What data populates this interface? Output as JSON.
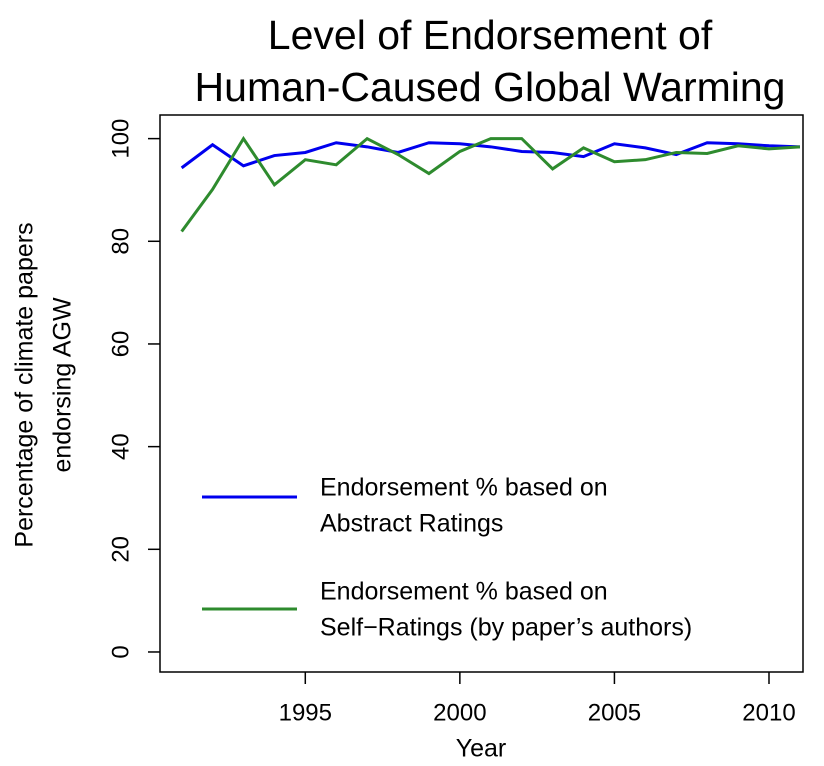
{
  "chart_data": {
    "type": "line",
    "title": [
      "Level of Endorsement of",
      "Human-Caused Global Warming"
    ],
    "xlabel": "Year",
    "ylabel": [
      "Percentage of climate papers",
      "endorsing AGW"
    ],
    "x": [
      1991,
      1992,
      1993,
      1994,
      1995,
      1996,
      1997,
      1998,
      1999,
      2000,
      2001,
      2002,
      2003,
      2004,
      2005,
      2006,
      2007,
      2008,
      2009,
      2010,
      2011
    ],
    "series": [
      {
        "name": [
          "Endorsement % based on",
          "Abstract Ratings"
        ],
        "color": "#0000ee",
        "values": [
          94.3,
          98.8,
          94.7,
          96.7,
          97.3,
          99.2,
          98.4,
          97.3,
          99.2,
          99.0,
          98.4,
          97.5,
          97.3,
          96.5,
          99.0,
          98.2,
          96.9,
          99.2,
          99.0,
          98.6,
          98.4
        ]
      },
      {
        "name": [
          "Endorsement % based on",
          "Self−Ratings (by paper’s authors)"
        ],
        "color": "#2e8b2e",
        "values": [
          81.9,
          90.1,
          100,
          91.0,
          95.9,
          94.9,
          100,
          96.9,
          93.2,
          97.5,
          100,
          100,
          94.1,
          98.2,
          95.5,
          95.9,
          97.3,
          97.1,
          98.6,
          98.0,
          98.4
        ]
      }
    ],
    "xlim": [
      1990.3,
      2011.1
    ],
    "ylim": [
      -3.9,
      104.6
    ],
    "xticks": [
      1995,
      2000,
      2005,
      2010
    ],
    "yticks": [
      0,
      20,
      40,
      60,
      80,
      100
    ],
    "grid": false
  }
}
